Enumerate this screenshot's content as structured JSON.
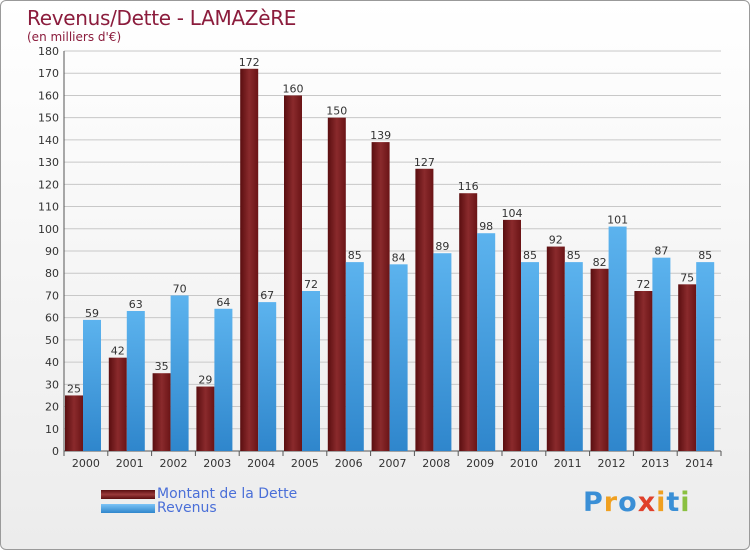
{
  "title": "Revenus/Dette - LAMAZèRE",
  "subtitle": "(en milliers d'€)",
  "logo_text": "Proxiti",
  "colors": {
    "dette": "#7a1d1d",
    "revenus": "#4aa3e6",
    "title": "#8b1c3c",
    "legend_text": "#4a6fd8"
  },
  "chart_data": {
    "type": "bar",
    "title": "Revenus/Dette - LAMAZèRE",
    "subtitle": "(en milliers d'€)",
    "categories": [
      "2000",
      "2001",
      "2002",
      "2003",
      "2004",
      "2005",
      "2006",
      "2007",
      "2008",
      "2009",
      "2010",
      "2011",
      "2012",
      "2013",
      "2014"
    ],
    "series": [
      {
        "name": "Montant de la Dette",
        "color": "#7a1d1d",
        "values": [
          25,
          42,
          35,
          29,
          172,
          160,
          150,
          139,
          127,
          116,
          104,
          92,
          82,
          72,
          75
        ]
      },
      {
        "name": "Revenus",
        "color": "#4aa3e6",
        "values": [
          59,
          63,
          70,
          64,
          67,
          72,
          85,
          84,
          89,
          98,
          85,
          85,
          101,
          87,
          85
        ]
      }
    ],
    "ylim": [
      0,
      180
    ],
    "yticks": [
      0,
      10,
      20,
      30,
      40,
      50,
      60,
      70,
      80,
      90,
      100,
      110,
      120,
      130,
      140,
      150,
      160,
      170,
      180
    ],
    "grid": true,
    "legend": "bottom-left"
  }
}
